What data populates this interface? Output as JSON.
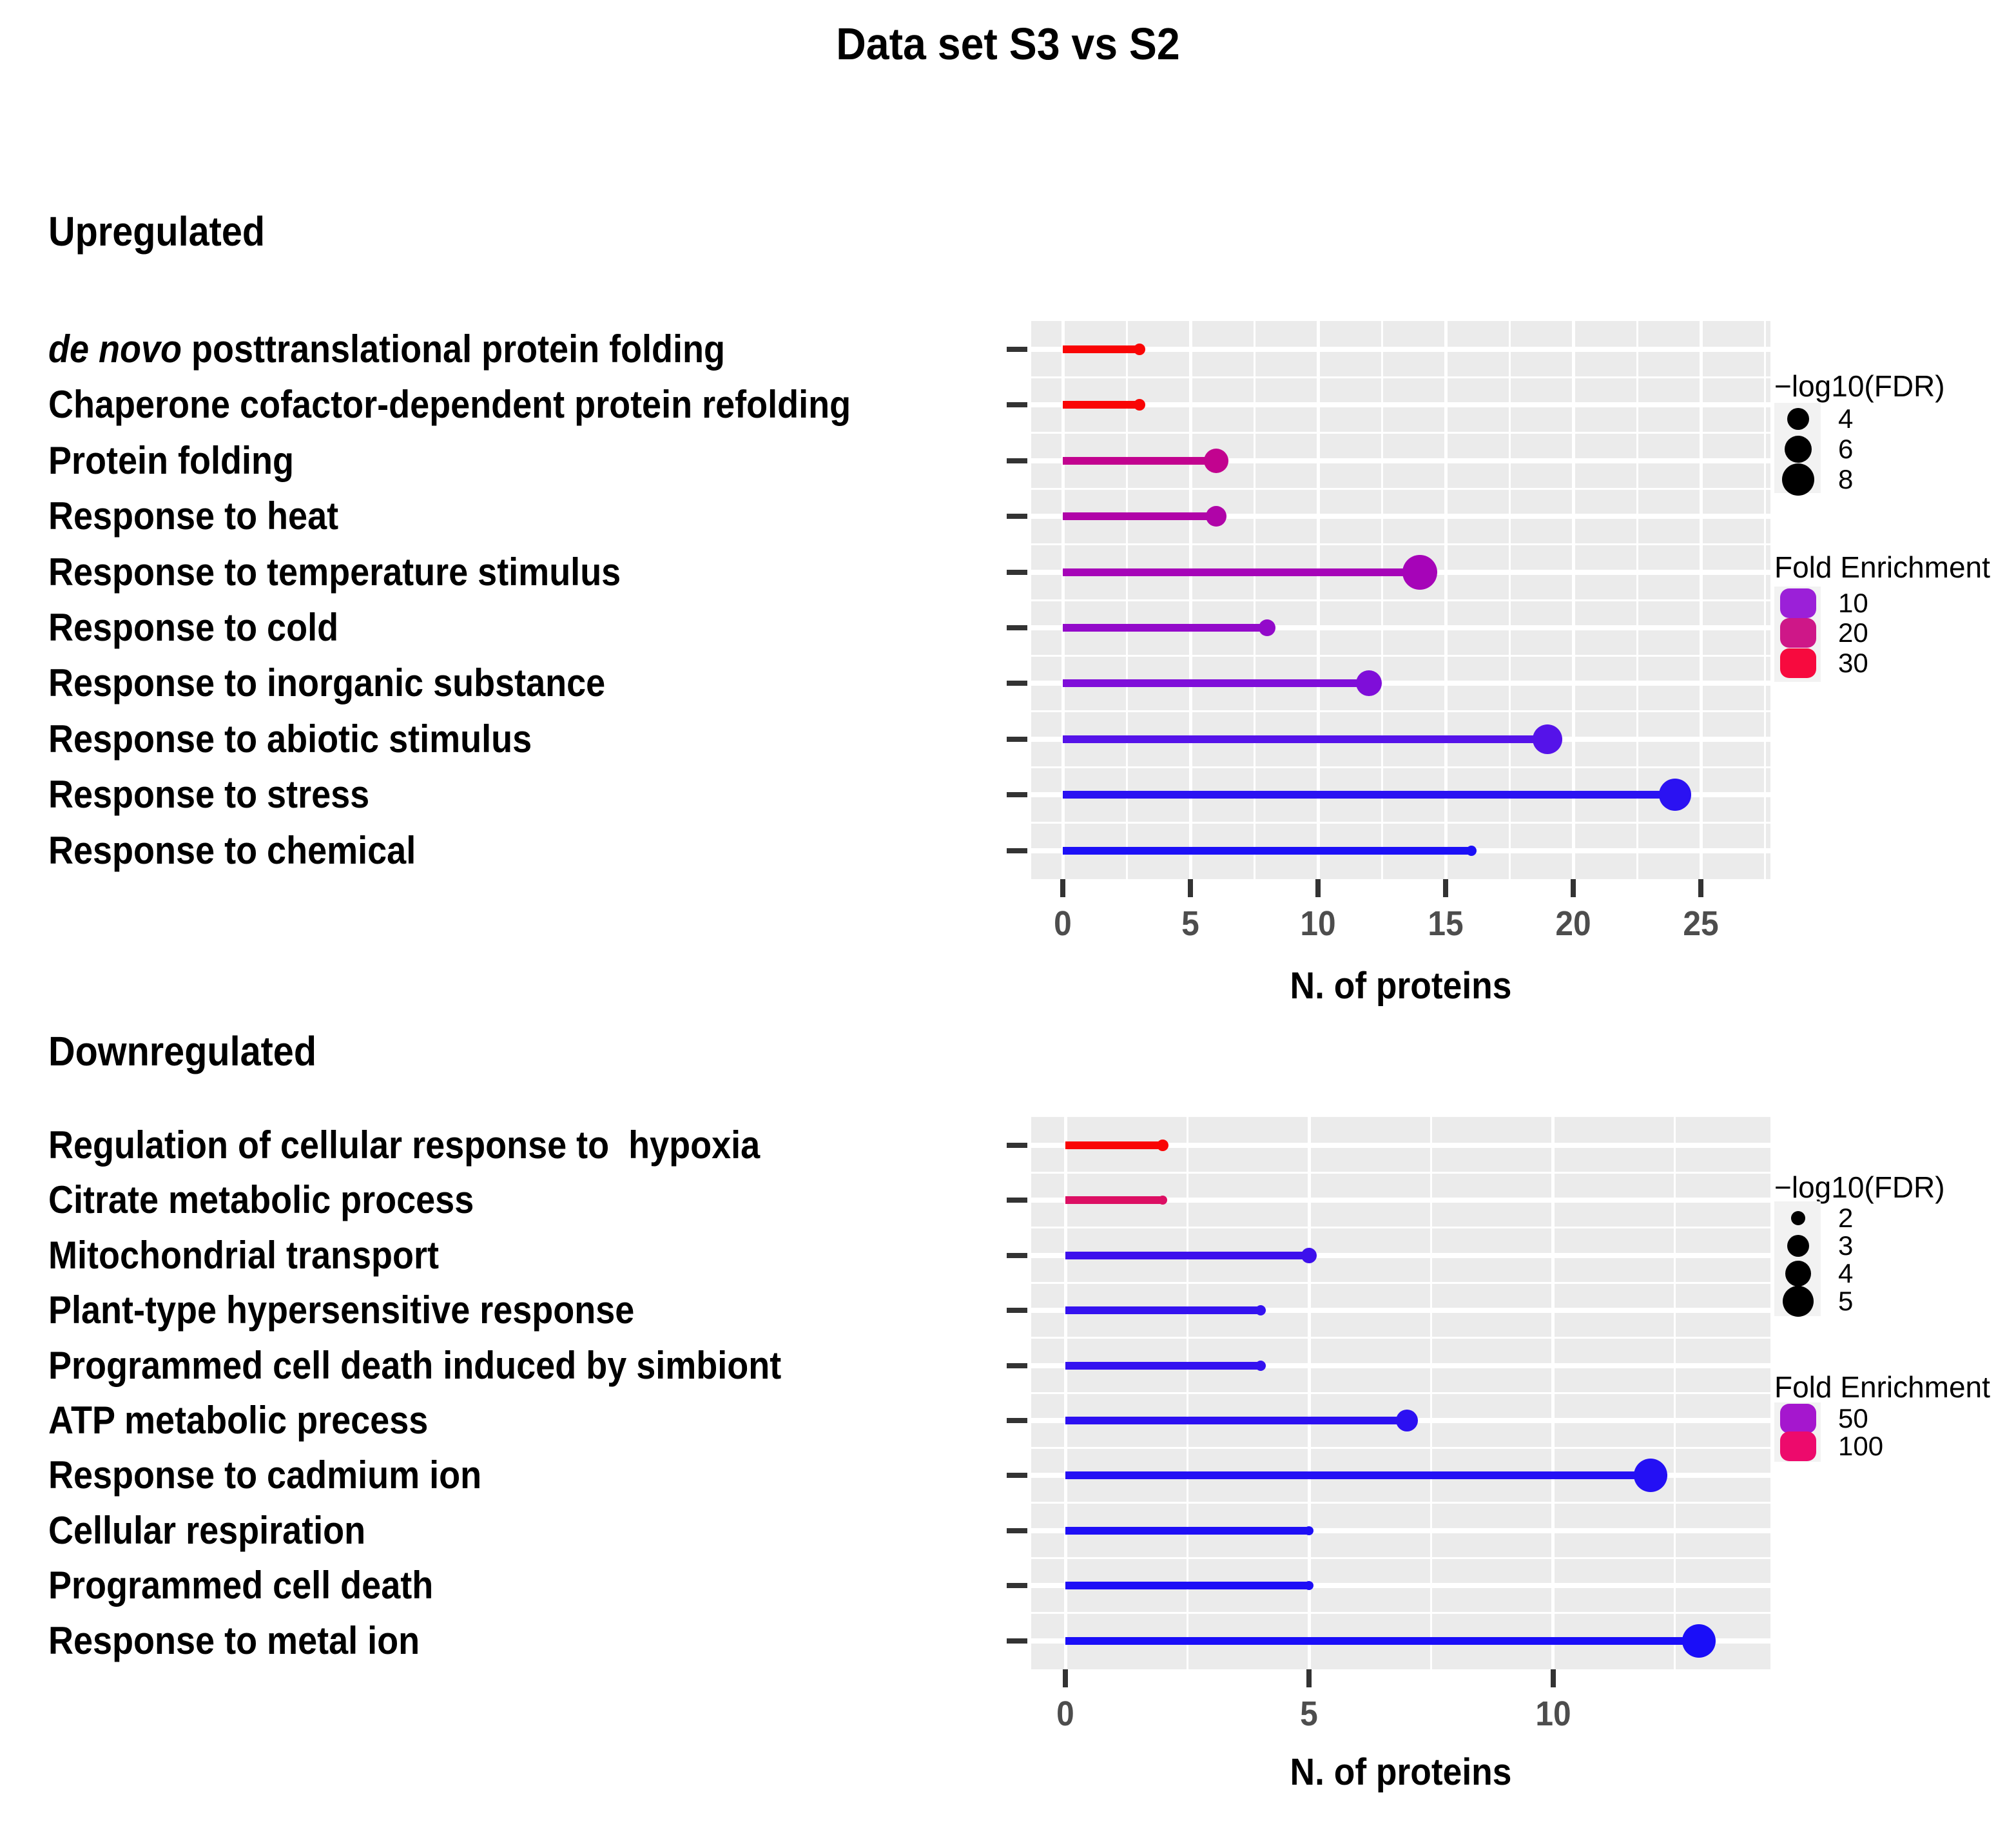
{
  "title": "Data set S3 vs S2",
  "chart_data": [
    {
      "type": "lollipop",
      "section": "Upregulated",
      "xlabel": "N. of proteins",
      "x_ticks": [
        0,
        5,
        10,
        15,
        20,
        25
      ],
      "x_minor": [
        2.5,
        7.5,
        12.5,
        17.5,
        22.5,
        27.5
      ],
      "xlim": [
        -1.2,
        27.7
      ],
      "grid": true,
      "legend_position": "right",
      "rows": [
        {
          "label_italic": "de novo",
          "label": " posttranslational protein folding",
          "value": 3,
          "fdr_approx": 3,
          "color": "#F90505",
          "dot_r": 9
        },
        {
          "label_italic": "",
          "label": "Chaperone cofactor-dependent protein refolding",
          "value": 3,
          "fdr_approx": 3,
          "color": "#F90505",
          "dot_r": 9
        },
        {
          "label_italic": "",
          "label": "Protein folding",
          "value": 6,
          "fdr_approx": 6,
          "color": "#C2038F",
          "dot_r": 19
        },
        {
          "label_italic": "",
          "label": "Response to heat",
          "value": 6,
          "fdr_approx": 5,
          "color": "#B004A8",
          "dot_r": 16
        },
        {
          "label_italic": "",
          "label": "Response to temperature stimulus",
          "value": 14,
          "fdr_approx": 8,
          "color": "#A604B8",
          "dot_r": 27
        },
        {
          "label_italic": "",
          "label": "Response to cold",
          "value": 8,
          "fdr_approx": 4,
          "color": "#930ACA",
          "dot_r": 13
        },
        {
          "label_italic": "",
          "label": "Response to inorganic substance",
          "value": 12,
          "fdr_approx": 6,
          "color": "#7F0ED9",
          "dot_r": 20
        },
        {
          "label_italic": "",
          "label": "Response to abiotic stimulus",
          "value": 19,
          "fdr_approx": 7,
          "color": "#5513E9",
          "dot_r": 23
        },
        {
          "label_italic": "",
          "label": "Response to stress",
          "value": 24,
          "fdr_approx": 8,
          "color": "#2B12F2",
          "dot_r": 25
        },
        {
          "label_italic": "",
          "label": "Response to chemical",
          "value": 16,
          "fdr_approx": 3,
          "color": "#1C10F7",
          "dot_r": 8
        }
      ],
      "legend_size": {
        "title": "−log10(FDR)",
        "entries": [
          {
            "label": "4",
            "r": 17
          },
          {
            "label": "6",
            "r": 21
          },
          {
            "label": "8",
            "r": 25
          }
        ]
      },
      "legend_color": {
        "title": "Fold Enrichment",
        "entries": [
          {
            "label": "10",
            "color": "#9B20D8"
          },
          {
            "label": "20",
            "color": "#CE1788"
          },
          {
            "label": "30",
            "color": "#F70A3E"
          }
        ]
      }
    },
    {
      "type": "lollipop",
      "section": "Downregulated",
      "xlabel": "N. of proteins",
      "x_ticks": [
        0,
        5,
        10
      ],
      "x_minor": [
        2.5,
        7.5,
        12.5
      ],
      "xlim": [
        -0.7,
        14.5
      ],
      "grid": true,
      "legend_position": "right",
      "rows": [
        {
          "label_italic": "",
          "label": "Regulation of cellular response to  hypoxia",
          "value": 2,
          "fdr_approx": 2.5,
          "color": "#F90505",
          "dot_r": 9
        },
        {
          "label_italic": "",
          "label": "Citrate metabolic process",
          "value": 2,
          "fdr_approx": 2,
          "color": "#DC0F63",
          "dot_r": 7
        },
        {
          "label_italic": "",
          "label": "Mitochondrial transport",
          "value": 5,
          "fdr_approx": 3,
          "color": "#3D10EC",
          "dot_r": 12
        },
        {
          "label_italic": "",
          "label": "Plant-type hypersensitive response",
          "value": 4,
          "fdr_approx": 2,
          "color": "#3412F0",
          "dot_r": 8
        },
        {
          "label_italic": "",
          "label": "Programmed cell death induced by simbiont",
          "value": 4,
          "fdr_approx": 2,
          "color": "#3412F0",
          "dot_r": 8
        },
        {
          "label_italic": "",
          "label": "ATP metabolic precess",
          "value": 7,
          "fdr_approx": 3.5,
          "color": "#2C10F2",
          "dot_r": 17
        },
        {
          "label_italic": "",
          "label": "Response to cadmium ion",
          "value": 12,
          "fdr_approx": 5,
          "color": "#2410F4",
          "dot_r": 26
        },
        {
          "label_italic": "",
          "label": "Cellular respiration",
          "value": 5,
          "fdr_approx": 1.5,
          "color": "#1E0FF6",
          "dot_r": 7
        },
        {
          "label_italic": "",
          "label": "Programmed cell death",
          "value": 5,
          "fdr_approx": 1.5,
          "color": "#1E0FF6",
          "dot_r": 7
        },
        {
          "label_italic": "",
          "label": "Response to metal ion",
          "value": 13,
          "fdr_approx": 5,
          "color": "#1A0EF8",
          "dot_r": 26
        }
      ],
      "legend_size": {
        "title": "−log10(FDR)",
        "entries": [
          {
            "label": "2",
            "r": 11
          },
          {
            "label": "3",
            "r": 17
          },
          {
            "label": "4",
            "r": 20
          },
          {
            "label": "5",
            "r": 24
          }
        ]
      },
      "legend_color": {
        "title": "Fold Enrichment",
        "entries": [
          {
            "label": "50",
            "color": "#A517CE"
          },
          {
            "label": "100",
            "color": "#ED0A6C"
          }
        ]
      }
    }
  ]
}
